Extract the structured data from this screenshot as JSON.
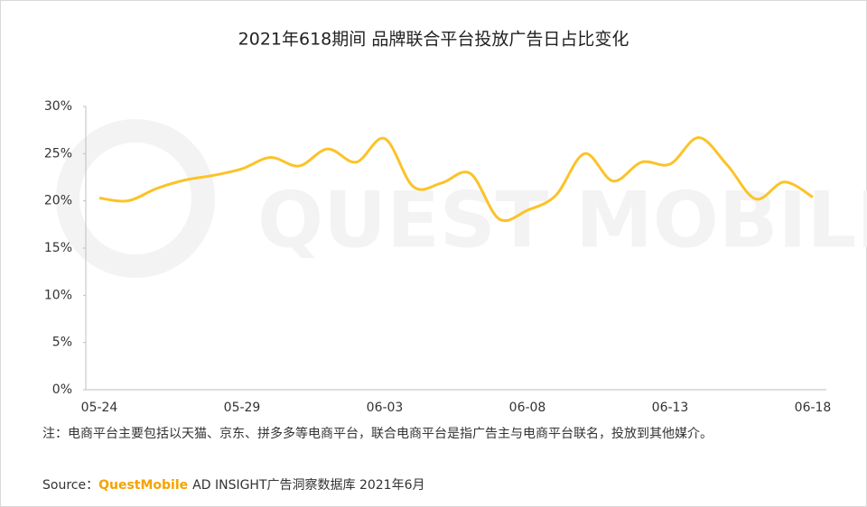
{
  "chart_data": {
    "type": "line",
    "title": "2021年618期间 品牌联合平台投放广告日占比变化",
    "watermark": "QUEST MOBILE",
    "categories": [
      "05-24",
      null,
      null,
      null,
      null,
      "05-29",
      null,
      null,
      null,
      null,
      "06-03",
      null,
      null,
      null,
      null,
      "06-08",
      null,
      null,
      null,
      null,
      "06-13",
      null,
      null,
      null,
      null,
      "06-18"
    ],
    "values": [
      20.3,
      20.0,
      21.3,
      22.2,
      22.7,
      23.4,
      24.6,
      23.7,
      25.5,
      24.1,
      26.6,
      21.5,
      21.9,
      22.9,
      18.1,
      19.0,
      20.6,
      25.0,
      22.1,
      24.1,
      23.9,
      26.7,
      23.8,
      20.2,
      22.0,
      20.4
    ],
    "color": "#fbc327",
    "ylim": [
      0,
      30
    ],
    "yticks": [
      {
        "value": 0,
        "label": "0%"
      },
      {
        "value": 5,
        "label": "5%"
      },
      {
        "value": 10,
        "label": "10%"
      },
      {
        "value": 15,
        "label": "15%"
      },
      {
        "value": 20,
        "label": "20%"
      },
      {
        "value": 25,
        "label": "25%"
      },
      {
        "value": 30,
        "label": "30%"
      }
    ],
    "grid": false,
    "note": "注：电商平台主要包括以天猫、京东、拼多多等电商平台，联合电商平台是指广告主与电商平台联名，投放到其他媒介。",
    "source": {
      "label": "Source：",
      "brand": "QuestMobile",
      "text": "AD INSIGHT广告洞察数据库 2021年6月"
    }
  }
}
